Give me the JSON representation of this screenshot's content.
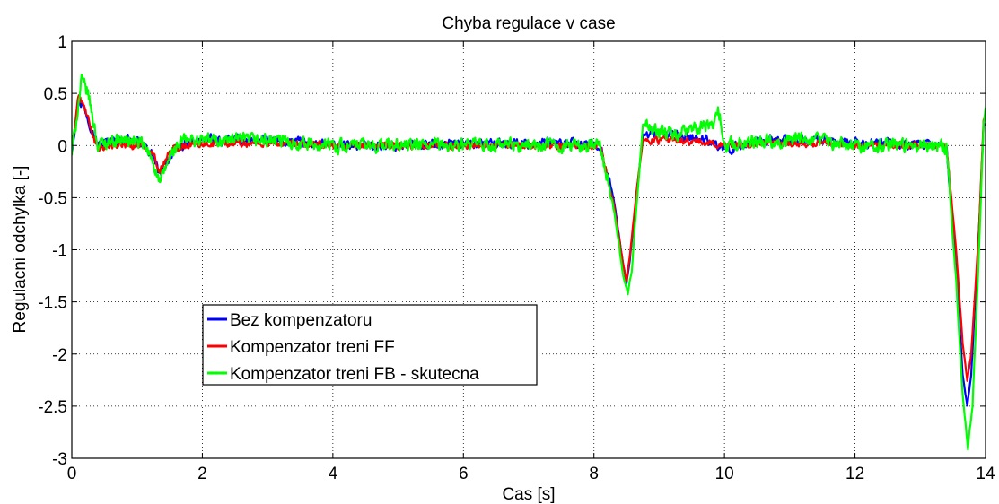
{
  "chart_data": {
    "type": "line",
    "title": "Chyba regulace v case",
    "xlabel": "Cas [s]",
    "ylabel": "Regulacni odchylka [-]",
    "xlim": [
      0,
      14
    ],
    "ylim": [
      -3,
      1
    ],
    "xticks": [
      "0",
      "2",
      "4",
      "6",
      "8",
      "10",
      "12",
      "14"
    ],
    "yticks": [
      "1",
      "0.5",
      "0",
      "-0.5",
      "-1",
      "-1.5",
      "-2",
      "-2.5",
      "-3"
    ],
    "grid": true,
    "legend_position": "lower-left",
    "series": [
      {
        "name": "Bez kompenzatoru",
        "color": "#0000ff",
        "noise": 0.07,
        "x": [
          0,
          0.1,
          0.2,
          0.4,
          0.6,
          0.9,
          1.1,
          1.25,
          1.35,
          1.5,
          1.7,
          2.0,
          3.0,
          4.0,
          5.0,
          6.0,
          7.0,
          7.6,
          8.1,
          8.3,
          8.45,
          8.5,
          8.55,
          8.65,
          8.75,
          8.9,
          9.2,
          9.8,
          10.0,
          10.5,
          11.0,
          11.5,
          12.0,
          12.5,
          13.0,
          13.4,
          13.55,
          13.65,
          13.72,
          13.78,
          13.9,
          13.97,
          14.0
        ],
        "y": [
          -0.05,
          0.45,
          0.35,
          0.0,
          0.05,
          0.05,
          0.0,
          -0.1,
          -0.3,
          -0.1,
          0.0,
          0.05,
          0.05,
          0.0,
          0.0,
          0.02,
          0.02,
          0.02,
          0.0,
          -0.5,
          -1.15,
          -1.32,
          -1.1,
          -0.5,
          0.1,
          0.12,
          0.1,
          0.05,
          -0.05,
          0.05,
          0.05,
          0.05,
          0.02,
          0.02,
          0.0,
          0.0,
          -1.2,
          -2.2,
          -2.5,
          -2.2,
          -0.8,
          0.2,
          0.2
        ]
      },
      {
        "name": "Kompenzator treni FF",
        "color": "#ff0000",
        "noise": 0.05,
        "x": [
          0,
          0.1,
          0.2,
          0.4,
          0.6,
          0.9,
          1.1,
          1.25,
          1.35,
          1.5,
          1.7,
          2.0,
          3.0,
          4.0,
          5.0,
          6.0,
          7.0,
          7.6,
          8.1,
          8.3,
          8.45,
          8.5,
          8.55,
          8.65,
          8.75,
          8.9,
          9.2,
          9.8,
          10.0,
          10.5,
          11.0,
          11.5,
          12.0,
          12.5,
          13.0,
          13.4,
          13.55,
          13.65,
          13.72,
          13.78,
          13.9,
          13.97,
          14.0
        ],
        "y": [
          -0.05,
          0.48,
          0.35,
          -0.05,
          0.0,
          0.0,
          0.0,
          -0.08,
          -0.25,
          -0.05,
          0.0,
          0.02,
          0.02,
          0.0,
          0.0,
          0.0,
          0.0,
          0.0,
          0.0,
          -0.55,
          -1.15,
          -1.3,
          -1.05,
          -0.45,
          0.05,
          0.05,
          0.05,
          0.02,
          0.0,
          0.02,
          0.02,
          0.02,
          0.0,
          0.0,
          0.0,
          0.0,
          -1.0,
          -1.9,
          -2.25,
          -2.0,
          -0.8,
          0.25,
          0.28
        ]
      },
      {
        "name": "Kompenzator treni FB - skutecna",
        "color": "#00ff00",
        "noise": 0.1,
        "x": [
          0,
          0.08,
          0.15,
          0.25,
          0.4,
          0.6,
          0.9,
          1.1,
          1.25,
          1.35,
          1.5,
          1.7,
          2.0,
          3.0,
          4.0,
          5.0,
          6.0,
          7.0,
          7.6,
          8.1,
          8.3,
          8.45,
          8.52,
          8.58,
          8.65,
          8.75,
          8.9,
          9.2,
          9.85,
          9.9,
          10.0,
          10.5,
          11.0,
          11.5,
          12.0,
          12.5,
          13.0,
          13.4,
          13.55,
          13.65,
          13.73,
          13.8,
          13.9,
          13.97,
          14.0
        ],
        "y": [
          -0.08,
          0.3,
          0.62,
          0.5,
          0.0,
          0.05,
          0.05,
          0.0,
          -0.15,
          -0.38,
          -0.1,
          0.05,
          0.05,
          0.05,
          0.0,
          0.0,
          0.0,
          0.0,
          0.0,
          0.0,
          -0.6,
          -1.25,
          -1.42,
          -1.2,
          -0.6,
          0.2,
          0.15,
          0.1,
          0.2,
          0.4,
          0.0,
          0.05,
          0.05,
          0.05,
          0.0,
          0.0,
          0.0,
          0.0,
          -1.3,
          -2.4,
          -2.9,
          -2.5,
          -1.0,
          0.2,
          0.35
        ]
      }
    ]
  }
}
